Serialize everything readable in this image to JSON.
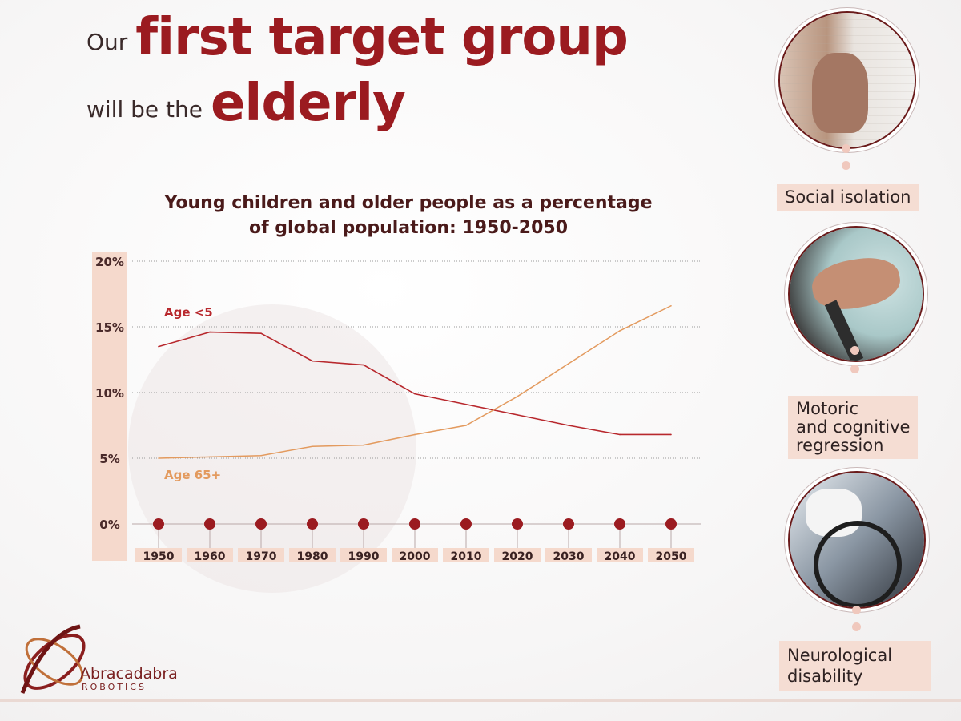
{
  "headline": {
    "line1_small": "Our",
    "line1_big": "first target group",
    "line2_small": "will be the",
    "line2_big": "elderly"
  },
  "colors": {
    "brand": "#9b1b20",
    "age_under5": "#b8282d",
    "age_65plus": "#e39a5e",
    "label_bg": "#f5ddd3"
  },
  "chart_data": {
    "type": "line",
    "title": "Young children and older people as a percentage of global population: 1950-2050",
    "title_lines": [
      "Young children and older people as a percentage",
      "of global population: 1950-2050"
    ],
    "x": [
      1950,
      1960,
      1970,
      1980,
      1990,
      2000,
      2010,
      2020,
      2030,
      2040,
      2050
    ],
    "y_ticks": [
      "20%",
      "15%",
      "10%",
      "5%",
      "0%"
    ],
    "ylim": [
      0,
      20
    ],
    "grid": true,
    "series": [
      {
        "name": "Age <5",
        "values": [
          13.5,
          14.6,
          14.5,
          12.4,
          12.1,
          9.9,
          9.1,
          8.3,
          7.5,
          6.8,
          6.8
        ]
      },
      {
        "name": "Age 65+",
        "values": [
          5.0,
          5.1,
          5.2,
          5.9,
          6.0,
          6.8,
          7.5,
          9.7,
          12.2,
          14.7,
          16.6
        ]
      }
    ]
  },
  "sidebar": {
    "items": [
      {
        "label": "Social isolation",
        "icon": "elderly-window-photo"
      },
      {
        "label": "Motoric\nand cognitive\nregression",
        "icon": "hands-cane-photo"
      },
      {
        "label": "Neurological\ndisability",
        "icon": "wheelchair-photo"
      }
    ]
  },
  "logo": {
    "name": "Abracadabra",
    "sub": "ROBOTICS"
  }
}
